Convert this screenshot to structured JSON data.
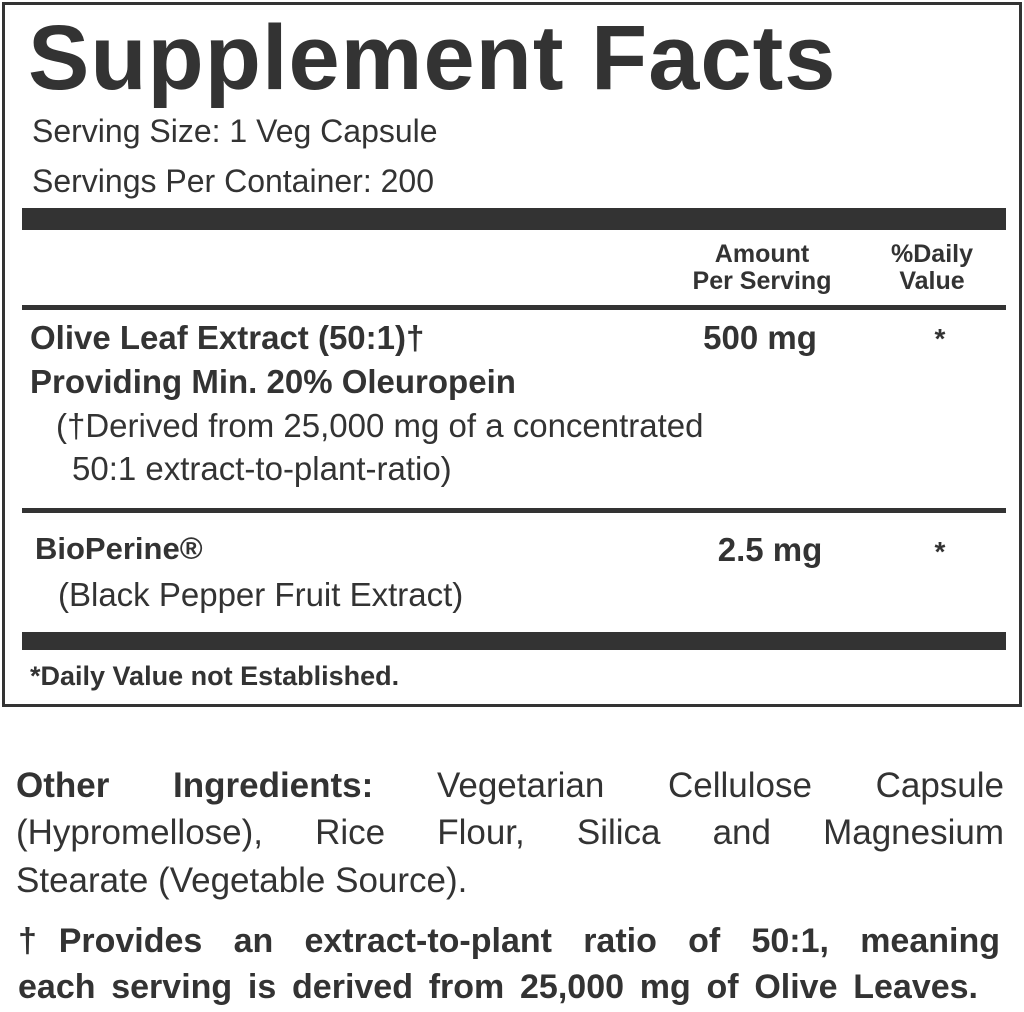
{
  "title": "Supplement Facts",
  "serving_size": "Serving Size: 1 Veg Capsule",
  "servings_per_container": "Servings Per Container: 200",
  "header": {
    "amount": [
      "Amount",
      "Per Serving"
    ],
    "daily_value": [
      "%Daily",
      "Value"
    ]
  },
  "ingredients": [
    {
      "name": [
        "Olive Leaf Extract (50:1)†",
        "Providing Min. 20% Oleuropein"
      ],
      "note": [
        "(†Derived from 25,000 mg of a concentrated",
        "50:1 extract-to-plant-ratio)"
      ],
      "amount": "500 mg",
      "daily_value": "*"
    },
    {
      "name": [
        "BioPerine®"
      ],
      "note": [
        "(Black Pepper Fruit Extract)"
      ],
      "amount": "2.5 mg",
      "daily_value": "*"
    }
  ],
  "footnote": "*Daily Value not Established.",
  "other_ingredients": {
    "label": "Other Ingredients:",
    "lines": [
      "Vegetarian Cellulose Capsule",
      "(Hypromellose),  Rice Flour, Silica and Magnesium",
      "Stearate (Vegetable Source)."
    ]
  },
  "extract_note": [
    "†Provides an extract-to-plant ratio of 50:1, meaning",
    "each serving is derived from 25,000 mg of Olive Leaves."
  ]
}
